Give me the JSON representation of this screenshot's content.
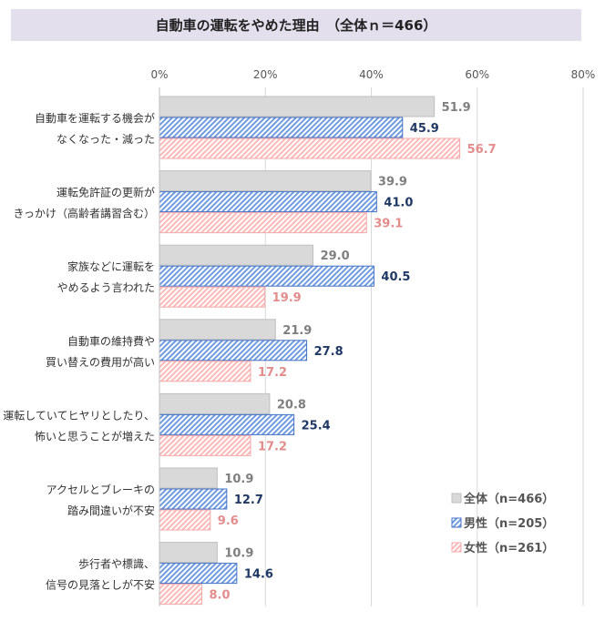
{
  "chart_data": {
    "type": "bar",
    "orientation": "horizontal",
    "title": "自動車の運転をやめた理由　（全体ｎ＝466）",
    "xlabel": "",
    "ylabel": "",
    "xlim": [
      0,
      80
    ],
    "ticks": [
      "0%",
      "20%",
      "40%",
      "60%",
      "80%"
    ],
    "tick_values": [
      0,
      20,
      40,
      60,
      80
    ],
    "grid": true,
    "legend_position": "bottom-right",
    "categories": [
      [
        "自動車を運転する機会が",
        "なくなった・減った"
      ],
      [
        "運転免許証の更新が",
        "きっかけ（高齢者講習含む）"
      ],
      [
        "家族などに運転を",
        "やめるよう言われた"
      ],
      [
        "自動車の維持費や",
        "買い替えの費用が高い"
      ],
      [
        "運転していてヒヤリとしたり、",
        "怖いと思うことが増えた"
      ],
      [
        "アクセルとブレーキの",
        "踏み間違いが不安"
      ],
      [
        "歩行者や標識、",
        "信号の見落としが不安"
      ]
    ],
    "series": [
      {
        "name": "全体（n=466）",
        "values": [
          51.9,
          39.9,
          29.0,
          21.9,
          20.8,
          10.9,
          10.9
        ],
        "fill": "#d9d9d9",
        "stroke": "#bfbfbf",
        "label_color": "#7f7f7f",
        "pattern": "solid"
      },
      {
        "name": "男性（n=205）",
        "values": [
          45.9,
          41.0,
          40.5,
          27.8,
          25.4,
          12.7,
          14.6
        ],
        "fill": "#6f9be0",
        "stroke": "#4472c4",
        "label_color": "#1f3864",
        "pattern": "hatch"
      },
      {
        "name": "女性（n=261）",
        "values": [
          56.7,
          39.1,
          19.9,
          17.2,
          17.2,
          9.6,
          8.0
        ],
        "fill": "#ffb8b8",
        "stroke": "#f5a9a9",
        "label_color": "#e38c8c",
        "pattern": "hatch"
      }
    ]
  }
}
